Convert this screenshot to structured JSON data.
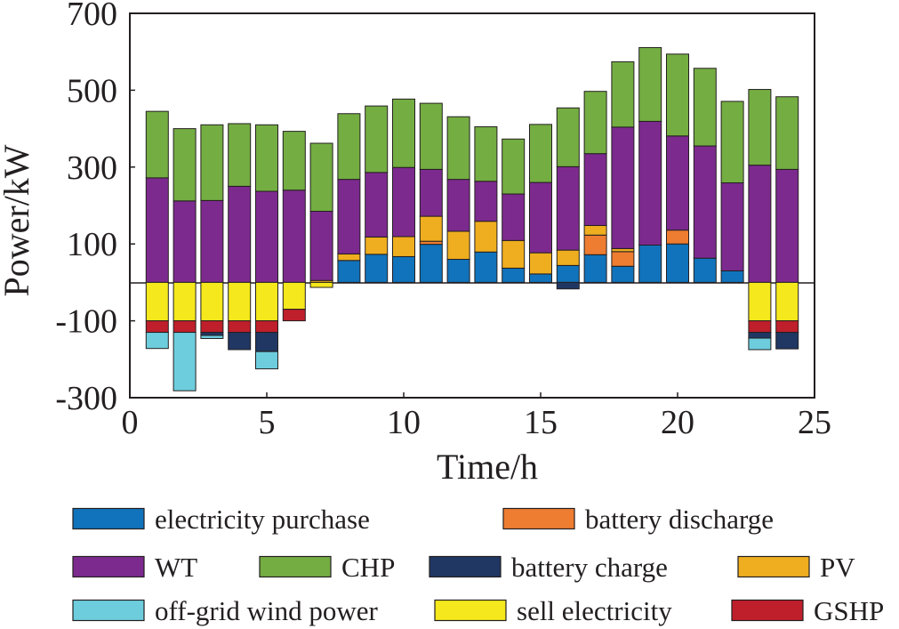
{
  "chart_data": {
    "type": "stacked-bar",
    "xlabel": "Time/h",
    "ylabel": "Power/kW",
    "xlim": [
      0,
      25
    ],
    "ylim": [
      -300,
      700
    ],
    "xticks": [
      0,
      5,
      10,
      15,
      20,
      25
    ],
    "yticks": [
      -300,
      -100,
      100,
      300,
      500,
      700
    ],
    "hours": [
      1,
      2,
      3,
      4,
      5,
      6,
      7,
      8,
      9,
      10,
      11,
      12,
      13,
      14,
      15,
      16,
      17,
      18,
      19,
      20,
      21,
      22,
      23,
      24
    ],
    "series": [
      {
        "key": "purchase",
        "name": "electricity purchase",
        "color": "#1173bb",
        "values": [
          0,
          0,
          0,
          0,
          0,
          0,
          0,
          57,
          73,
          67,
          99,
          60,
          79,
          37,
          22,
          44,
          72,
          42,
          97,
          100,
          63,
          30,
          0,
          0
        ]
      },
      {
        "key": "discharge",
        "name": "battery discharge",
        "color": "#ee7d31",
        "values": [
          0,
          0,
          0,
          0,
          0,
          0,
          0,
          0,
          0,
          0,
          8,
          0,
          0,
          0,
          0,
          0,
          51,
          38,
          0,
          36,
          0,
          0,
          0,
          0
        ]
      },
      {
        "key": "pv",
        "name": "PV",
        "color": "#efae1f",
        "values": [
          0,
          0,
          0,
          0,
          0,
          0,
          5,
          17,
          45,
          52,
          65,
          73,
          80,
          72,
          55,
          40,
          25,
          8,
          0,
          0,
          0,
          0,
          0,
          0
        ]
      },
      {
        "key": "wt",
        "name": "WT",
        "color": "#7d2a8f",
        "values": [
          272,
          212,
          213,
          250,
          237,
          240,
          180,
          194,
          168,
          180,
          122,
          135,
          104,
          121,
          183,
          217,
          187,
          316,
          322,
          245,
          292,
          229,
          305,
          294
        ]
      },
      {
        "key": "chp",
        "name": "CHP",
        "color": "#74ad42",
        "values": [
          173,
          188,
          197,
          163,
          173,
          153,
          177,
          171,
          173,
          178,
          172,
          163,
          142,
          143,
          151,
          153,
          162,
          170,
          192,
          213,
          202,
          212,
          197,
          189
        ]
      },
      {
        "key": "sell",
        "name": "sell electricity",
        "color": "#f5e81c",
        "values": [
          -100,
          -100,
          -100,
          -100,
          -100,
          -70,
          -13,
          0,
          0,
          0,
          0,
          0,
          0,
          0,
          0,
          0,
          0,
          0,
          0,
          0,
          0,
          0,
          -100,
          -100
        ]
      },
      {
        "key": "gshp",
        "name": "GSHP",
        "color": "#bf1f2b",
        "values": [
          -30,
          -30,
          -30,
          -30,
          -30,
          -30,
          0,
          0,
          0,
          0,
          0,
          0,
          0,
          0,
          0,
          0,
          0,
          0,
          0,
          0,
          0,
          0,
          -30,
          -30
        ]
      },
      {
        "key": "charge",
        "name": "battery charge",
        "color": "#203763",
        "values": [
          0,
          0,
          -8,
          -45,
          -50,
          0,
          0,
          0,
          0,
          0,
          0,
          0,
          0,
          0,
          0,
          -17,
          0,
          0,
          0,
          0,
          0,
          0,
          -15,
          -43
        ]
      },
      {
        "key": "offgrid",
        "name": "off-grid wind power",
        "color": "#6dcddd",
        "values": [
          -42,
          -152,
          -8,
          0,
          -45,
          0,
          0,
          0,
          0,
          0,
          0,
          0,
          0,
          0,
          0,
          0,
          0,
          0,
          0,
          0,
          0,
          0,
          -30,
          0
        ]
      }
    ],
    "legend": {
      "rows": [
        [
          "purchase",
          "discharge"
        ],
        [
          "wt",
          "chp",
          "charge",
          "pv"
        ],
        [
          "offgrid",
          "sell",
          "gshp"
        ]
      ],
      "labels": {
        "purchase": "electricity purchase",
        "discharge": "battery discharge",
        "wt": "WT",
        "chp": "CHP",
        "charge": "battery charge",
        "pv": "PV",
        "offgrid": "off-grid wind power",
        "sell": "sell electricity",
        "gshp": "GSHP"
      }
    }
  }
}
